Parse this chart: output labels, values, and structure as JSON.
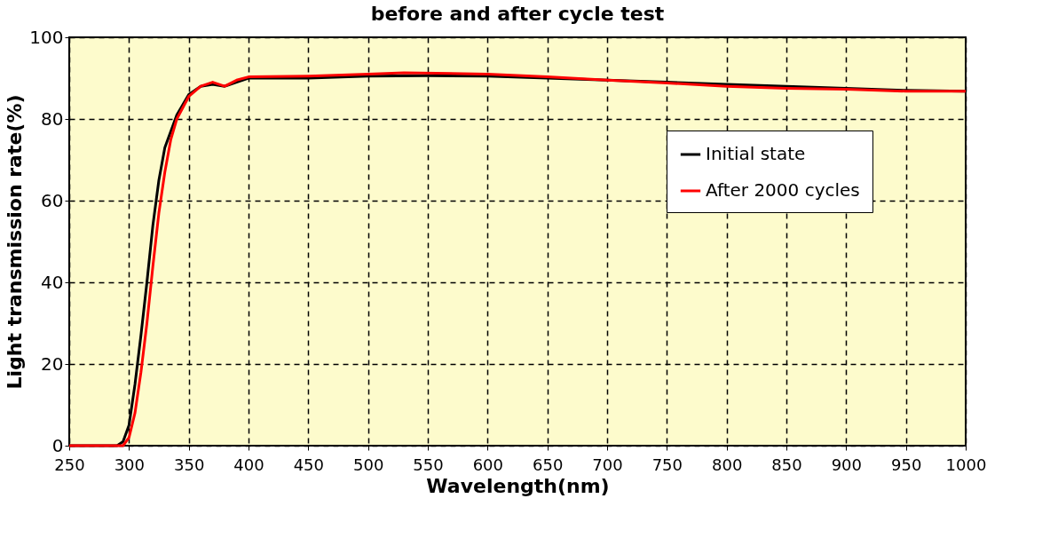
{
  "chart_data": {
    "type": "line",
    "title": "before and after cycle test",
    "xlabel": "Wavelength(nm)",
    "ylabel": "Light transmission rate(%)",
    "xlim": [
      250,
      1000
    ],
    "xticks": [
      250,
      300,
      350,
      400,
      450,
      500,
      550,
      600,
      650,
      700,
      750,
      800,
      850,
      900,
      950,
      1000
    ],
    "ylim": [
      0,
      100
    ],
    "yticks": [
      0,
      20,
      40,
      60,
      80,
      100
    ],
    "grid": true,
    "legend": "top right",
    "line_style": "solid",
    "marker": "none",
    "series": [
      {
        "name": "Initial state",
        "color": "#000000",
        "x": [
          250,
          290,
          295,
          300,
          305,
          310,
          315,
          320,
          325,
          330,
          340,
          350,
          360,
          370,
          380,
          390,
          400,
          450,
          500,
          550,
          600,
          650,
          700,
          750,
          800,
          850,
          900,
          950,
          1000
        ],
        "values": [
          0,
          0,
          1,
          5,
          15,
          27,
          40,
          54,
          65,
          73,
          81,
          86,
          88,
          88.5,
          88,
          89,
          90,
          90,
          90.5,
          90.6,
          90.5,
          90,
          89.5,
          89,
          88.5,
          88,
          87.5,
          87,
          86.8
        ]
      },
      {
        "name": "After 2000 cycles",
        "color": "#ff0000",
        "x": [
          250,
          295,
          300,
          305,
          310,
          315,
          320,
          325,
          330,
          335,
          340,
          350,
          360,
          370,
          380,
          390,
          400,
          450,
          500,
          530,
          600,
          650,
          700,
          750,
          800,
          850,
          900,
          950,
          1000
        ],
        "values": [
          0,
          0,
          2,
          8,
          18,
          30,
          44,
          57,
          67,
          75,
          80,
          85.5,
          88,
          89,
          88,
          89.5,
          90.3,
          90.5,
          91,
          91.3,
          91,
          90.3,
          89.5,
          88.8,
          88,
          87.5,
          87.3,
          86.8,
          86.8
        ]
      }
    ]
  }
}
